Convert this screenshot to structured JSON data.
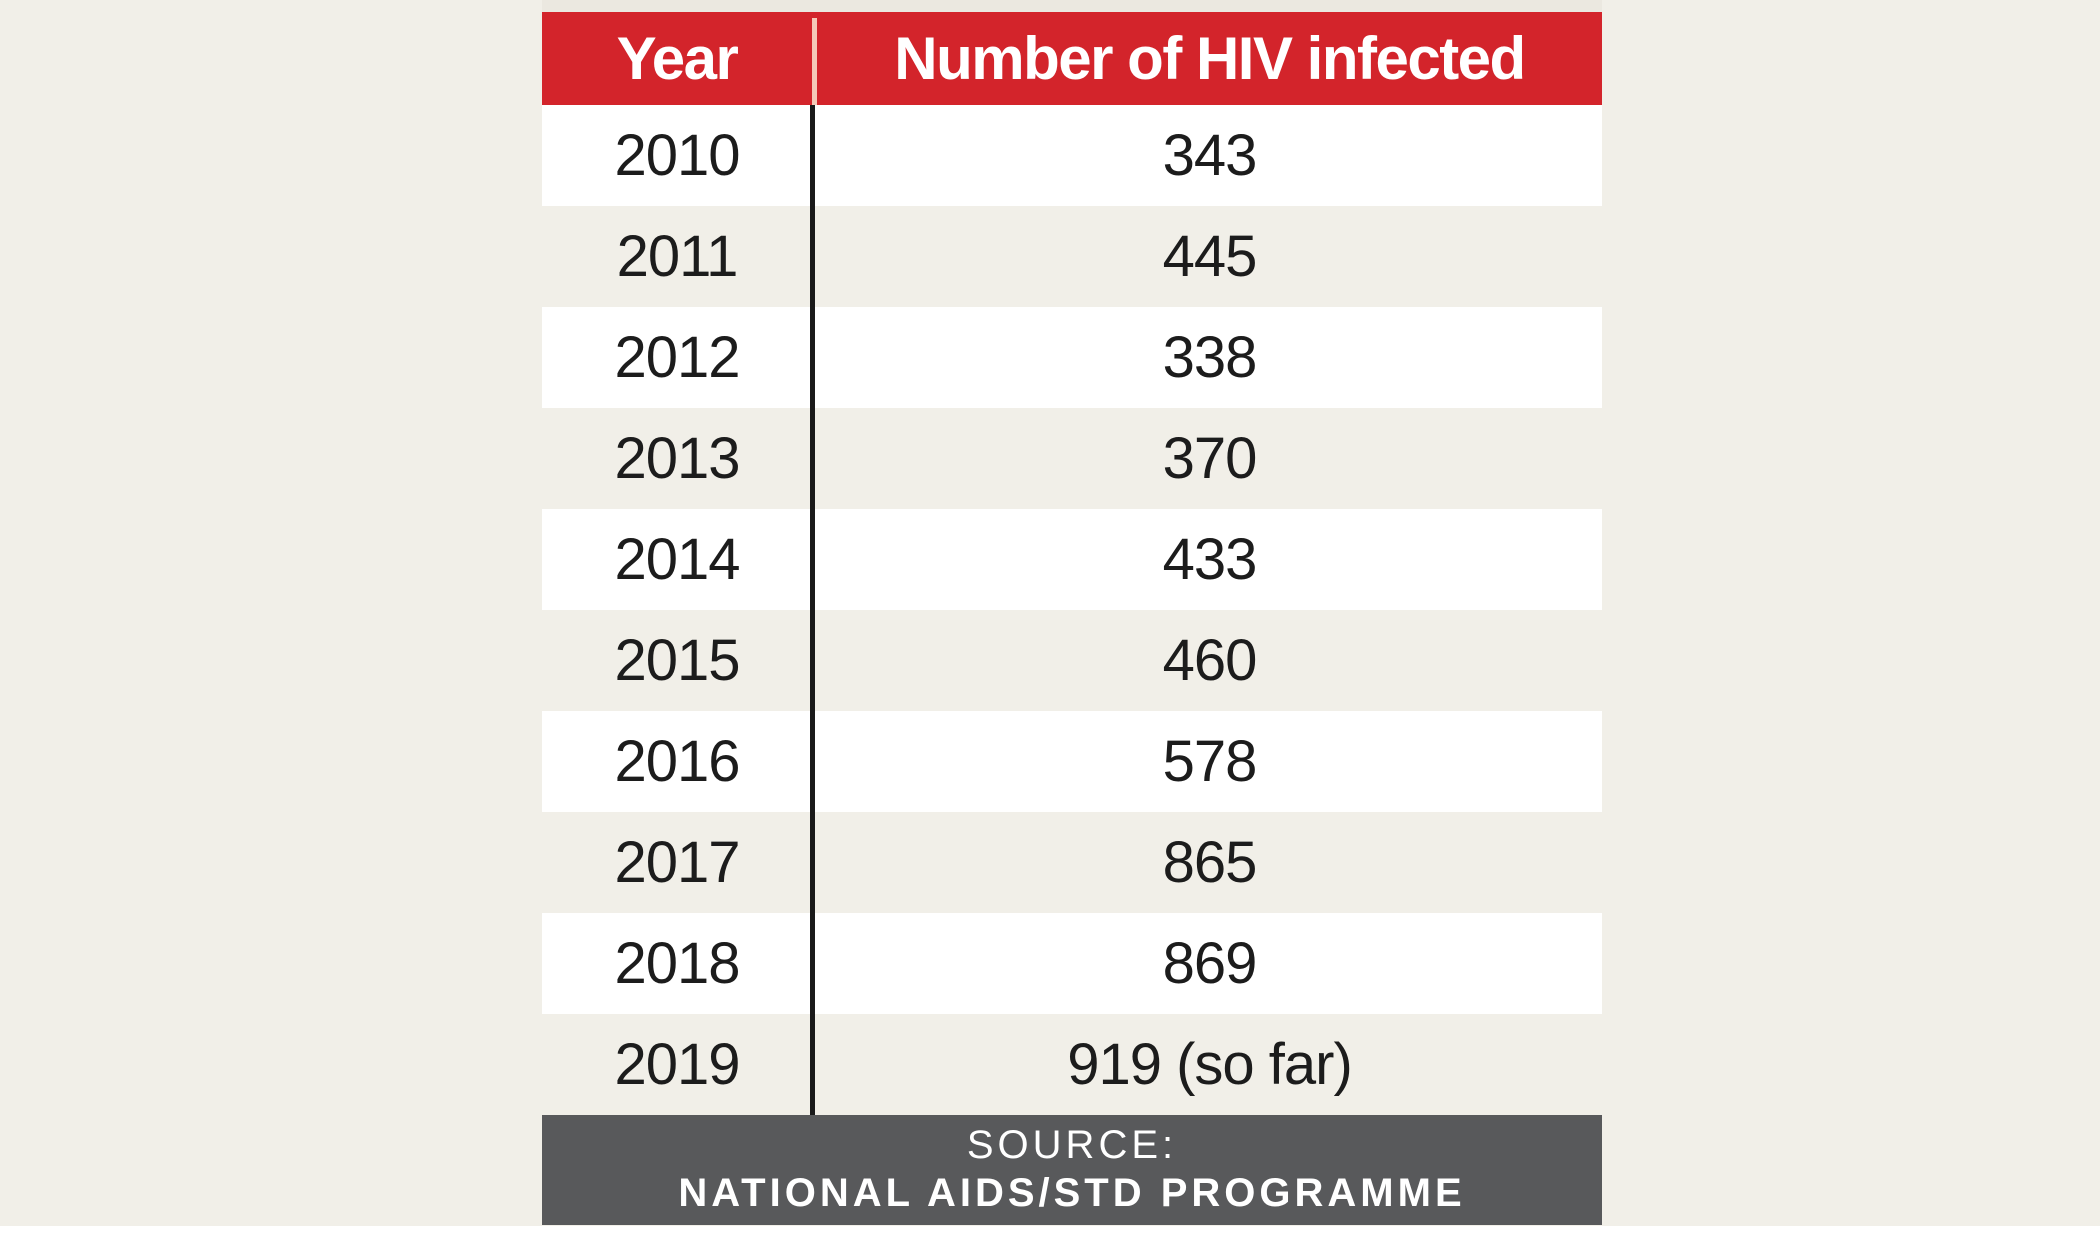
{
  "chart_data": {
    "type": "table",
    "columns": [
      "Year",
      "Number of HIV infected"
    ],
    "rows": [
      {
        "year": "2010",
        "value": "343"
      },
      {
        "year": "2011",
        "value": "445"
      },
      {
        "year": "2012",
        "value": "338"
      },
      {
        "year": "2013",
        "value": "370"
      },
      {
        "year": "2014",
        "value": "433"
      },
      {
        "year": "2015",
        "value": "460"
      },
      {
        "year": "2016",
        "value": "578"
      },
      {
        "year": "2017",
        "value": "865"
      },
      {
        "year": "2018",
        "value": "869"
      },
      {
        "year": "2019",
        "value": "919 (so far)"
      }
    ],
    "source_label": "SOURCE:",
    "source_name": "NATIONAL AIDS/STD PROGRAMME"
  },
  "colors": {
    "header_bg": "#d3242b",
    "footer_bg": "#58595b",
    "stripe_light": "#ffffff",
    "stripe_dark": "#f1efe8"
  }
}
